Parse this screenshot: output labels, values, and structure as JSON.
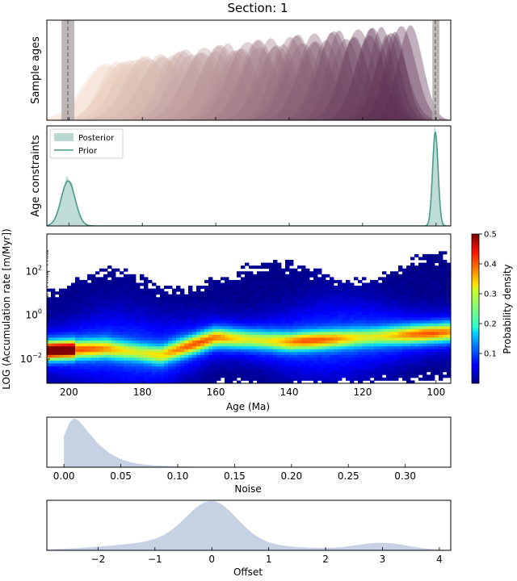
{
  "figure": {
    "title": "Section: 1",
    "ylabel_rate": "LOG (Accumulation rate [m/Myr])"
  },
  "colors": {
    "posterior_fill": "#b9d8d2",
    "prior_line": "#4a9a8c",
    "marginal_fill": "#c6d1e4",
    "constraint_band": "#b3aaaa",
    "age_curve_light": "#f2d7c6",
    "age_curve_dark": "#5b2e52"
  },
  "chart_data": [
    {
      "id": "sample-ages",
      "type": "area",
      "ylabel": "Sample ages",
      "xlim": [
        206,
        96
      ],
      "x_reversed": true,
      "constraint_bands": [
        {
          "center": 200.3,
          "range": [
            198.5,
            202.0
          ]
        },
        {
          "center": 100.2,
          "range": [
            99.1,
            101.0
          ]
        }
      ],
      "curve_count": 60,
      "curve_age_range": [
        190,
        108
      ],
      "curve_peak_density_range": [
        0.55,
        0.92
      ],
      "curve_spread_range_myr": [
        5.5,
        3.5
      ],
      "colormap": "light peach to dark purple (older to younger)"
    },
    {
      "id": "age-constraints",
      "type": "area",
      "ylabel": "Age constraints",
      "xlim": [
        206,
        96
      ],
      "x_reversed": true,
      "legend": {
        "location": "upper left",
        "entries": [
          "Posterior",
          "Prior"
        ]
      },
      "series": [
        {
          "name": "Posterior",
          "style": "filled",
          "components": [
            {
              "mean": 200.2,
              "sd": 1.9,
              "peak": 0.48
            },
            {
              "mean": 100.2,
              "sd": 0.75,
              "peak": 0.99
            }
          ]
        },
        {
          "name": "Prior",
          "style": "line",
          "components": [
            {
              "mean": 200.2,
              "sd": 1.9,
              "peak": 0.45
            },
            {
              "mean": 100.2,
              "sd": 0.75,
              "peak": 0.94
            }
          ]
        }
      ]
    },
    {
      "id": "accumulation-rate",
      "type": "heatmap",
      "xlabel": "Age (Ma)",
      "ylabel": "LOG (Accumulation rate [m/Myr])",
      "xlim": [
        206,
        96
      ],
      "x_reversed": true,
      "xticks": [
        200,
        180,
        160,
        140,
        120,
        100
      ],
      "xtick_labels": [
        "200",
        "180",
        "160",
        "140",
        "120",
        "100"
      ],
      "ylim_log10": [
        -3.1,
        3.7
      ],
      "yticks": [
        {
          "exp": 2,
          "label_base": "10",
          "label_exp": "2"
        },
        {
          "exp": 0,
          "label_base": "10",
          "label_exp": "0"
        },
        {
          "exp": -2,
          "label_base": "10",
          "label_exp": "−2"
        }
      ],
      "ridge_log10_at_age": [
        [
          206,
          -1.6
        ],
        [
          190,
          -1.5
        ],
        [
          175,
          -1.8
        ],
        [
          160,
          -1.0
        ],
        [
          140,
          -1.2
        ],
        [
          120,
          -1.0
        ],
        [
          100,
          -0.8
        ],
        [
          96,
          -0.75
        ]
      ],
      "colorbar": {
        "label": "Probability density",
        "range": [
          0,
          0.5
        ],
        "ticks": [
          "0.1",
          "0.2",
          "0.3",
          "0.4",
          "0.5"
        ],
        "colormap": "jet"
      }
    },
    {
      "id": "noise",
      "type": "area",
      "xlabel": "Noise",
      "xlim": [
        -0.015,
        0.34
      ],
      "xticks": [
        "0.00",
        "0.05",
        "0.10",
        "0.15",
        "0.20",
        "0.25",
        "0.30"
      ],
      "density_points": [
        [
          0.0,
          0.0
        ],
        [
          0.0,
          0.62
        ],
        [
          0.005,
          0.9
        ],
        [
          0.009,
          0.98
        ],
        [
          0.013,
          0.93
        ],
        [
          0.02,
          0.74
        ],
        [
          0.03,
          0.47
        ],
        [
          0.04,
          0.28
        ],
        [
          0.05,
          0.16
        ],
        [
          0.06,
          0.09
        ],
        [
          0.07,
          0.055
        ],
        [
          0.08,
          0.035
        ],
        [
          0.1,
          0.018
        ],
        [
          0.12,
          0.008
        ],
        [
          0.15,
          0.0
        ]
      ]
    },
    {
      "id": "offset",
      "type": "area",
      "xlabel": "Offset",
      "xlim": [
        -2.9,
        4.2
      ],
      "xticks": [
        "−2",
        "−1",
        "0",
        "1",
        "2",
        "3",
        "4"
      ],
      "components": [
        {
          "mean": 0.0,
          "sd": 0.44,
          "peak": 0.8
        },
        {
          "mean": -0.45,
          "sd": 1.1,
          "peak": 0.16
        },
        {
          "mean": 3.0,
          "sd": 0.45,
          "peak": 0.14
        },
        {
          "mean": 0.3,
          "sd": 1.6,
          "peak": 0.04
        }
      ]
    }
  ]
}
